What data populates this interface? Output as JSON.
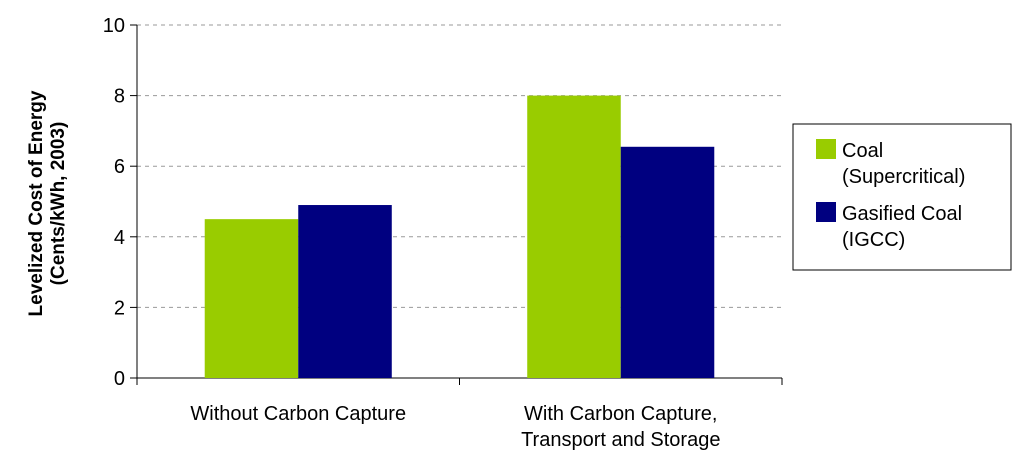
{
  "chart_data": {
    "type": "bar",
    "title": "",
    "xlabel": "",
    "ylabel_lines": [
      "Levelized Cost of Energy",
      "(Cents/kWh, 2003)"
    ],
    "ylim": [
      0,
      10
    ],
    "yticks": [
      0,
      2,
      4,
      6,
      8,
      10
    ],
    "grid": true,
    "legend_position": "right",
    "categories": [
      [
        "Without Carbon Capture"
      ],
      [
        "With Carbon Capture,",
        "Transport and Storage"
      ]
    ],
    "series": [
      {
        "name_lines": [
          "Coal",
          "(Supercritical)"
        ],
        "color": "#99CC00",
        "values": [
          4.5,
          8.0
        ]
      },
      {
        "name_lines": [
          "Gasified Coal",
          "(IGCC)"
        ],
        "color": "#000080",
        "values": [
          4.9,
          6.55
        ]
      }
    ]
  }
}
